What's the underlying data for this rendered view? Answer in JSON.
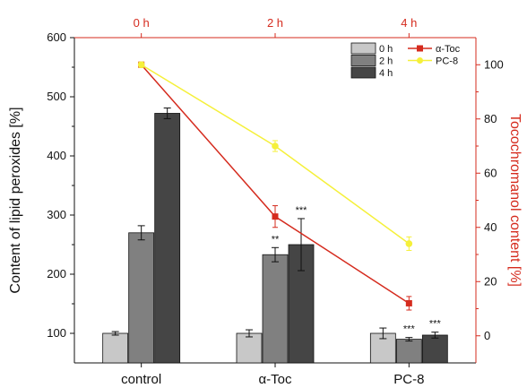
{
  "chart_data": {
    "type": "bar",
    "categories": [
      "control",
      "α-Toc",
      "PC-8"
    ],
    "ylabel": "Content of lipid peroxides [%]",
    "ylim": [
      50,
      600
    ],
    "yticks": [
      100,
      200,
      300,
      400,
      500,
      600
    ],
    "y2label": "Tocochromanol content [%]",
    "y2lim": [
      -10,
      110
    ],
    "y2ticks": [
      0,
      20,
      40,
      60,
      80,
      100
    ],
    "top_x_ticks": [
      "0 h",
      "2 h",
      "4 h"
    ],
    "grid": false,
    "legend_position": "top-right",
    "bar_series": [
      {
        "name": "0 h",
        "color": "#c8c8c8",
        "values": [
          100,
          100,
          100
        ],
        "errors": [
          3,
          6,
          9
        ]
      },
      {
        "name": "2 h",
        "color": "#808080",
        "values": [
          270,
          233,
          90
        ],
        "errors": [
          12,
          12,
          3
        ]
      },
      {
        "name": "4 h",
        "color": "#454545",
        "values": [
          472,
          250,
          97
        ],
        "errors": [
          9,
          44,
          5
        ]
      }
    ],
    "line_series": [
      {
        "name": "α-Toc",
        "color": "#d52b1e",
        "marker": "square",
        "x": [
          "0 h",
          "2 h",
          "4 h"
        ],
        "values": [
          100,
          44,
          12
        ],
        "errors": [
          1,
          4,
          2.5
        ]
      },
      {
        "name": "PC-8",
        "color": "#f5f03a",
        "marker": "circle",
        "x": [
          "0 h",
          "2 h",
          "4 h"
        ],
        "values": [
          100,
          70,
          34
        ],
        "errors": [
          1,
          2,
          2.5
        ]
      }
    ],
    "annotations": [
      {
        "category": "α-Toc",
        "series": "2 h",
        "text": "**"
      },
      {
        "category": "α-Toc",
        "series": "4 h",
        "text": "***"
      },
      {
        "category": "PC-8",
        "series": "2 h",
        "text": "***"
      },
      {
        "category": "PC-8",
        "series": "4 h",
        "text": "***"
      }
    ]
  }
}
